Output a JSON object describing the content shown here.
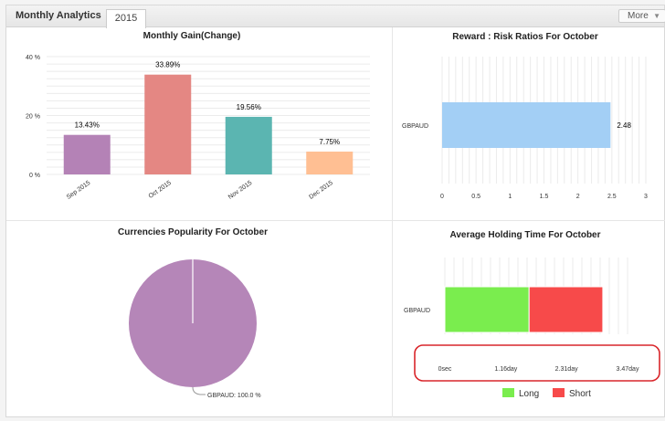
{
  "widget": {
    "title": "Monthly Analytics",
    "tab": "2015",
    "more_label": "More",
    "more_icon": "caret-down-icon"
  },
  "chart_data": [
    {
      "id": "gain",
      "type": "bar",
      "title": "Monthly Gain(Change)",
      "categories": [
        "Sep 2015",
        "Oct 2015",
        "Nov 2015",
        "Dec 2015"
      ],
      "values": [
        13.43,
        33.89,
        19.56,
        7.75
      ],
      "data_labels": [
        "13.43%",
        "33.89%",
        "19.56%",
        "7.75%"
      ],
      "colors": [
        "#b482b6",
        "#e48783",
        "#5bb5b1",
        "#ffbf93"
      ],
      "ylim": [
        0,
        40
      ],
      "yticks": [
        0,
        20,
        40
      ],
      "ytick_labels": [
        "0 %",
        "20 %",
        "40 %"
      ],
      "grid": true
    },
    {
      "id": "reward",
      "type": "bar",
      "orientation": "horizontal",
      "title": "Reward : Risk Ratios For October",
      "categories": [
        "GBPAUD"
      ],
      "values": [
        2.48
      ],
      "data_labels": [
        "2.48"
      ],
      "colors": [
        "#a3cff5"
      ],
      "xlim": [
        0,
        3
      ],
      "xticks": [
        0,
        0.5,
        1,
        1.5,
        2,
        2.5,
        3
      ],
      "xtick_labels": [
        "0",
        "0.5",
        "1",
        "1.5",
        "2",
        "2.5",
        "3"
      ],
      "grid": true
    },
    {
      "id": "popularity",
      "type": "pie",
      "title": "Currencies Popularity For October",
      "slices": [
        {
          "label": "GBPAUD",
          "value": 100.0
        }
      ],
      "slice_labels": [
        "GBPAUD: 100.0 %"
      ],
      "colors": [
        "#b586b8"
      ]
    },
    {
      "id": "holding",
      "type": "bar",
      "orientation": "horizontal",
      "stacked": true,
      "title": "Average Holding Time For October",
      "categories": [
        "GBPAUD"
      ],
      "unit": "day",
      "series": [
        {
          "name": "Long",
          "values": [
            1.6
          ]
        },
        {
          "name": "Short",
          "values": [
            1.4
          ]
        }
      ],
      "colors": [
        "#7aed4e",
        "#f74a4a"
      ],
      "xlim": [
        0,
        3.47
      ],
      "xticks": [
        0,
        1.16,
        2.31,
        3.47
      ],
      "xtick_labels": [
        "0sec",
        "1.16day",
        "2.31day",
        "3.47day"
      ],
      "legend": "bottom",
      "highlight": "red rounded box around x-axis labels"
    }
  ]
}
